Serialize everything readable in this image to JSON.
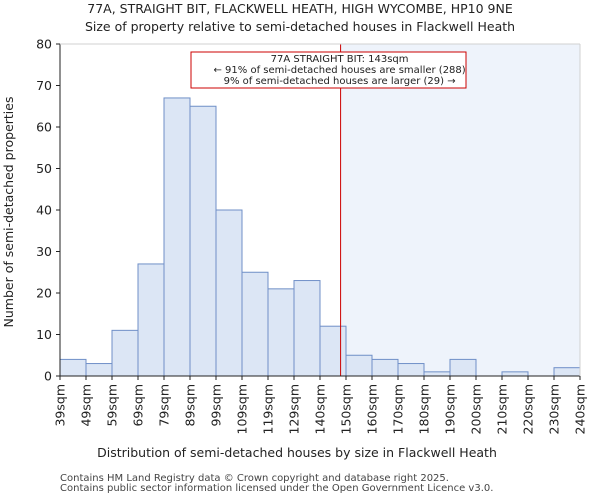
{
  "chart_data": {
    "type": "bar",
    "title_line1": "77A, STRAIGHT BIT, FLACKWELL HEATH, HIGH WYCOMBE, HP10 9NE",
    "title_line2": "Size of property relative to semi-detached houses in Flackwell Heath",
    "xlabel": "Distribution of semi-detached houses by size in Flackwell Heath",
    "ylabel": "Number of semi-detached properties",
    "ylim": [
      0,
      80
    ],
    "yticks": [
      0,
      10,
      20,
      30,
      40,
      50,
      60,
      70,
      80
    ],
    "bin_start": 34,
    "bin_width": 10.1,
    "tick_labels": [
      "39sqm",
      "49sqm",
      "59sqm",
      "69sqm",
      "79sqm",
      "89sqm",
      "99sqm",
      "109sqm",
      "119sqm",
      "129sqm",
      "140sqm",
      "150sqm",
      "160sqm",
      "170sqm",
      "180sqm",
      "190sqm",
      "200sqm",
      "210sqm",
      "220sqm",
      "230sqm",
      "240sqm"
    ],
    "values": [
      4,
      3,
      11,
      27,
      67,
      65,
      40,
      25,
      21,
      23,
      12,
      5,
      4,
      3,
      1,
      4,
      0,
      1,
      0,
      2
    ],
    "property_value": 143,
    "property_marker_color": "#cc0000",
    "bar_fill": "#dce6f5",
    "bar_edge": "#6f8fc7",
    "shade_fill": "#eef3fb",
    "annotation": {
      "line1": "77A STRAIGHT BIT: 143sqm",
      "line2": "← 91% of semi-detached houses are smaller (288)",
      "line3": "9% of semi-detached houses are larger (29) →"
    }
  },
  "footer": {
    "line1": "Contains HM Land Registry data © Crown copyright and database right 2025.",
    "line2": "Contains public sector information licensed under the Open Government Licence v3.0."
  }
}
